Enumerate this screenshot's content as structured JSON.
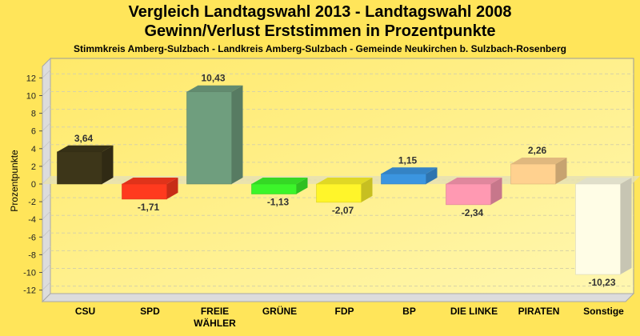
{
  "header": {
    "title": "Vergleich Landtagswahl 2013 - Landtagswahl 2008",
    "subtitle": "Gewinn/Verlust Erststimmen in Prozentpunkte",
    "location": "Stimmkreis Amberg-Sulzbach - Landkreis Amberg-Sulzbach - Gemeinde Neukirchen b. Sulzbach-Rosenberg"
  },
  "chart_data": {
    "type": "bar",
    "title": "Vergleich Landtagswahl 2013 - Landtagswahl 2008",
    "subtitle": "Gewinn/Verlust Erststimmen in Prozentpunkte",
    "xlabel": "",
    "ylabel": "Prozentpunkte",
    "ylim": [
      -13,
      13
    ],
    "yticks": [
      12,
      10,
      8,
      6,
      4,
      2,
      0,
      -2,
      -4,
      -6,
      -8,
      -10,
      -12
    ],
    "grid": true,
    "categories": [
      {
        "lines": [
          "CSU"
        ]
      },
      {
        "lines": [
          "SPD"
        ]
      },
      {
        "lines": [
          "FREIE",
          "WÄHLER"
        ]
      },
      {
        "lines": [
          "GRÜNE"
        ]
      },
      {
        "lines": [
          "FDP"
        ]
      },
      {
        "lines": [
          "BP"
        ]
      },
      {
        "lines": [
          "DIE LINKE"
        ]
      },
      {
        "lines": [
          "PIRATEN"
        ]
      },
      {
        "lines": [
          "Sonstige"
        ]
      }
    ],
    "values": [
      3.64,
      -1.71,
      10.43,
      -1.13,
      -2.07,
      1.15,
      -2.34,
      2.26,
      -10.23
    ],
    "labels": [
      "3,64",
      "-1,71",
      "10,43",
      "-1,13",
      "-2,07",
      "1,15",
      "-2,34",
      "2,26",
      "-10,23"
    ],
    "colors": [
      "#3d3619",
      "#ff3a1e",
      "#6f9e7e",
      "#3cf52a",
      "#fff52a",
      "#3b95e0",
      "#ff99b2",
      "#ffd18f",
      "#fffde6"
    ]
  }
}
